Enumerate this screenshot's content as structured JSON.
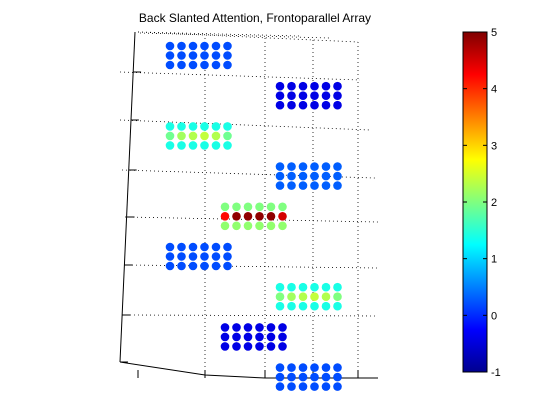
{
  "chart_data": {
    "type": "scatter",
    "title": "Back Slanted Attention, Frontoparallel Array",
    "xlabel": "",
    "ylabel": "",
    "grid": true,
    "colormap": "jet",
    "colorbar": {
      "position": "right",
      "min": -1,
      "max": 5,
      "ticks": [
        -1,
        0,
        1,
        2,
        3,
        4,
        5
      ],
      "tick_labels": [
        "-1",
        "0",
        "1",
        "2",
        "3",
        "4",
        "5"
      ]
    },
    "layout": {
      "columns": 2,
      "rows": 7,
      "cluster_rows": 3,
      "cluster_cols": 6,
      "cluster_order": "column 1 = clusters at rows 1,3,5 ; column 2 = clusters at rows 2,4,6,7 (top to bottom)"
    },
    "clusters": [
      {
        "id": "c1",
        "col": 0,
        "row": 0,
        "rows": [
          [
            0.2,
            0.2,
            0.2,
            0.2,
            0.2,
            0.2
          ],
          [
            0.2,
            0.2,
            0.2,
            0.2,
            0.2,
            0.2
          ],
          [
            0.2,
            0.2,
            0.2,
            0.2,
            0.2,
            0.2
          ]
        ]
      },
      {
        "id": "c2",
        "col": 1,
        "row": 1,
        "rows": [
          [
            -0.4,
            -0.4,
            -0.4,
            -0.4,
            -0.4,
            -0.4
          ],
          [
            -0.4,
            -0.4,
            -0.4,
            -0.4,
            -0.4,
            -0.4
          ],
          [
            -0.4,
            -0.4,
            -0.4,
            -0.4,
            -0.4,
            -0.4
          ]
        ]
      },
      {
        "id": "c3",
        "col": 0,
        "row": 2,
        "rows": [
          [
            1.4,
            1.4,
            1.4,
            1.4,
            1.4,
            1.4
          ],
          [
            1.9,
            2.2,
            2.3,
            2.4,
            2.3,
            1.9
          ],
          [
            1.4,
            1.4,
            1.4,
            1.4,
            1.4,
            1.4
          ]
        ]
      },
      {
        "id": "c4",
        "col": 1,
        "row": 3,
        "rows": [
          [
            0.3,
            0.3,
            0.3,
            0.3,
            0.3,
            0.3
          ],
          [
            0.3,
            0.3,
            0.3,
            0.3,
            0.3,
            0.3
          ],
          [
            0.3,
            0.3,
            0.3,
            0.3,
            0.3,
            0.3
          ]
        ]
      },
      {
        "id": "c5",
        "col": 0.5,
        "row": 4,
        "rows": [
          [
            2.0,
            2.0,
            2.0,
            2.0,
            2.0,
            2.0
          ],
          [
            4.2,
            4.9,
            4.9,
            4.9,
            4.9,
            4.5
          ],
          [
            2.1,
            2.1,
            2.1,
            2.1,
            2.1,
            2.1
          ]
        ]
      },
      {
        "id": "c6",
        "col": 0,
        "row": 5,
        "rows": [
          [
            0.2,
            0.2,
            0.2,
            0.2,
            0.2,
            0.2
          ],
          [
            0.2,
            0.2,
            0.2,
            0.2,
            0.2,
            0.2
          ],
          [
            0.2,
            0.2,
            0.2,
            0.2,
            0.2,
            0.2
          ]
        ]
      },
      {
        "id": "c7",
        "col": 1,
        "row": 6,
        "rows": [
          [
            1.4,
            1.4,
            1.4,
            1.4,
            1.4,
            1.4
          ],
          [
            2.0,
            2.2,
            2.3,
            2.4,
            2.3,
            2.0
          ],
          [
            1.4,
            1.4,
            1.4,
            1.4,
            1.4,
            1.4
          ]
        ]
      },
      {
        "id": "c8",
        "col": 0.5,
        "row": 7,
        "rows": [
          [
            -0.4,
            -0.4,
            -0.4,
            -0.4,
            -0.4,
            -0.4
          ],
          [
            -0.4,
            -0.4,
            -0.4,
            -0.4,
            -0.4,
            -0.4
          ],
          [
            -0.4,
            -0.4,
            -0.4,
            -0.4,
            -0.4,
            -0.4
          ]
        ]
      },
      {
        "id": "c9",
        "col": 1,
        "row": 8,
        "rows": [
          [
            0.2,
            0.2,
            0.2,
            0.2,
            0.2,
            0.2
          ],
          [
            0.2,
            0.2,
            0.2,
            0.2,
            0.2,
            0.2
          ],
          [
            0.2,
            0.2,
            0.2,
            0.2,
            0.2,
            0.2
          ]
        ]
      }
    ]
  }
}
